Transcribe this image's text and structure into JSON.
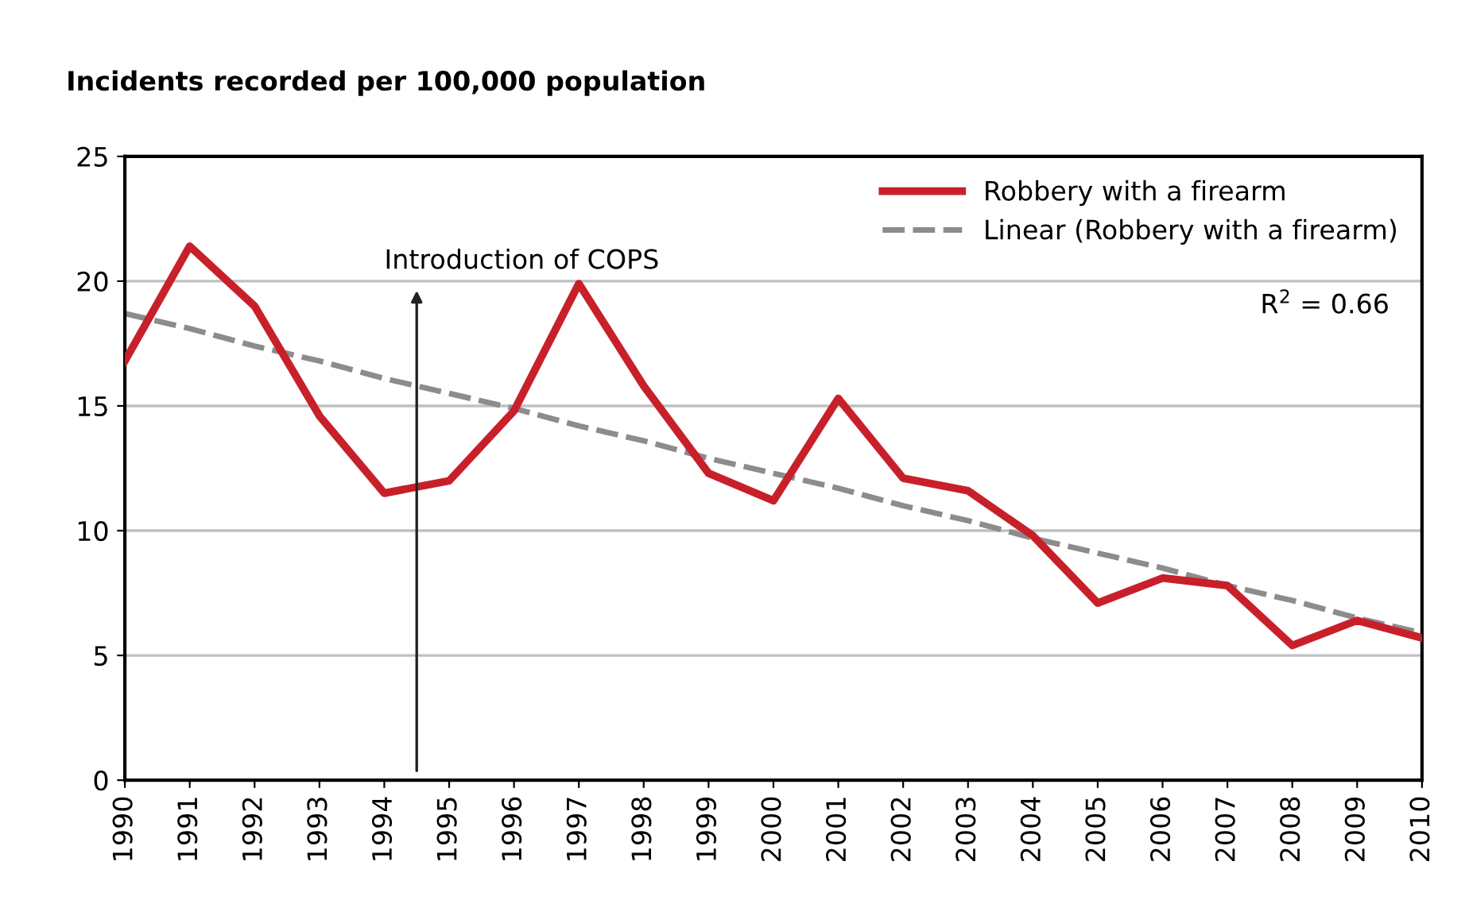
{
  "chart_data": {
    "type": "line",
    "ylabel": "Incidents recorded per 100,000 population",
    "categories": [
      "1990",
      "1991",
      "1992",
      "1993",
      "1994",
      "1995",
      "1996",
      "1997",
      "1998",
      "1999",
      "2000",
      "2001",
      "2002",
      "2003",
      "2004",
      "2005",
      "2006",
      "2007",
      "2008",
      "2009",
      "2010"
    ],
    "series": [
      {
        "name": "Robbery with a firearm",
        "color": "#c8202a",
        "line_style": "solid",
        "values": [
          16.8,
          21.4,
          19.0,
          14.6,
          11.5,
          12.0,
          14.8,
          19.9,
          15.8,
          12.3,
          11.2,
          15.3,
          12.1,
          11.6,
          9.8,
          7.1,
          8.1,
          7.8,
          5.4,
          6.4,
          5.7
        ]
      },
      {
        "name": "Linear (Robbery with a firearm)",
        "color": "#8c8c8c",
        "line_style": "dashed",
        "values": [
          18.7,
          18.1,
          17.4,
          16.8,
          16.1,
          15.5,
          14.9,
          14.2,
          13.6,
          12.9,
          12.3,
          11.7,
          11.0,
          10.4,
          9.7,
          9.1,
          8.5,
          7.8,
          7.2,
          6.5,
          5.9
        ]
      }
    ],
    "ylim": [
      0,
      25
    ],
    "yticks": [
      0,
      5,
      10,
      15,
      20,
      25
    ],
    "grid": "y",
    "legend": "top right",
    "marker": "none",
    "annotations": [
      "Introduction of COPS",
      "R$^{2}$ = 0.66"
    ]
  }
}
